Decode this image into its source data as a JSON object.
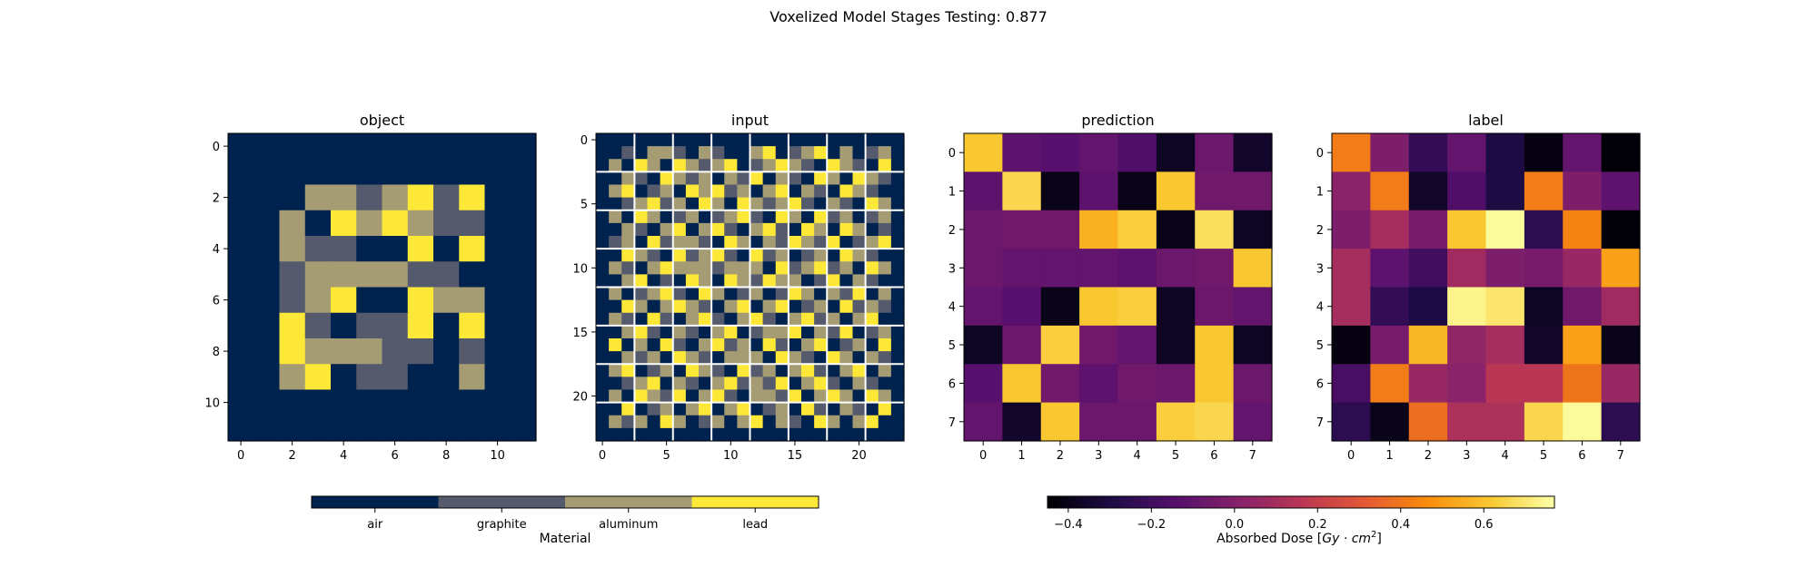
{
  "suptitle": "Voxelized Model Stages Testing: 0.877",
  "chart_data": [
    {
      "type": "heatmap",
      "title": "object",
      "xticks": [
        0,
        2,
        4,
        6,
        8,
        10
      ],
      "yticks": [
        0,
        2,
        4,
        6,
        8,
        10
      ],
      "xlim": [
        -0.5,
        11.5
      ],
      "ylim": [
        -0.5,
        11.5
      ],
      "grid": false,
      "cells": [
        [
          0,
          0,
          0,
          0,
          0,
          0,
          0,
          0,
          0,
          0,
          0,
          0
        ],
        [
          0,
          0,
          0,
          0,
          0,
          0,
          0,
          0,
          0,
          0,
          0,
          0
        ],
        [
          0,
          0,
          0,
          2,
          2,
          1,
          2,
          3,
          1,
          3,
          0,
          0
        ],
        [
          0,
          0,
          2,
          0,
          3,
          2,
          3,
          2,
          1,
          1,
          0,
          0
        ],
        [
          0,
          0,
          2,
          1,
          1,
          0,
          0,
          3,
          0,
          3,
          0,
          0
        ],
        [
          0,
          0,
          1,
          2,
          2,
          2,
          2,
          1,
          1,
          0,
          0,
          0
        ],
        [
          0,
          0,
          1,
          2,
          3,
          0,
          0,
          3,
          2,
          2,
          0,
          0
        ],
        [
          0,
          0,
          3,
          1,
          0,
          1,
          1,
          3,
          0,
          3,
          0,
          0
        ],
        [
          0,
          0,
          3,
          2,
          2,
          2,
          1,
          1,
          0,
          1,
          0,
          0
        ],
        [
          0,
          0,
          2,
          3,
          0,
          1,
          1,
          0,
          0,
          2,
          0,
          0
        ],
        [
          0,
          0,
          0,
          0,
          0,
          0,
          0,
          0,
          0,
          0,
          0,
          0
        ],
        [
          0,
          0,
          0,
          0,
          0,
          0,
          0,
          0,
          0,
          0,
          0,
          0
        ]
      ]
    },
    {
      "type": "heatmap",
      "title": "input",
      "xticks": [
        0,
        5,
        10,
        15,
        20
      ],
      "yticks": [
        0,
        5,
        10,
        15,
        20
      ],
      "xlim": [
        -0.5,
        23.5
      ],
      "ylim": [
        -0.5,
        23.5
      ],
      "grid": true,
      "grid_lines": [
        2.5,
        5.5,
        8.5,
        11.5,
        14.5,
        17.5,
        20.5
      ],
      "cells": [
        [
          0,
          0,
          0,
          0,
          0,
          0,
          0,
          0,
          0,
          0,
          0,
          0,
          0,
          0,
          0,
          0,
          0,
          0,
          0,
          0,
          0,
          0,
          0,
          0
        ],
        [
          0,
          0,
          1,
          0,
          2,
          2,
          1,
          0,
          2,
          1,
          0,
          0,
          2,
          3,
          0,
          1,
          2,
          3,
          0,
          2,
          0,
          1,
          2,
          0
        ],
        [
          0,
          2,
          0,
          3,
          2,
          0,
          3,
          2,
          1,
          2,
          3,
          0,
          1,
          2,
          3,
          2,
          1,
          0,
          3,
          2,
          1,
          0,
          3,
          0
        ],
        [
          0,
          0,
          2,
          1,
          0,
          3,
          2,
          1,
          2,
          0,
          2,
          1,
          3,
          0,
          2,
          1,
          0,
          3,
          2,
          0,
          3,
          2,
          1,
          0
        ],
        [
          0,
          2,
          3,
          0,
          1,
          2,
          0,
          3,
          2,
          3,
          1,
          2,
          0,
          2,
          3,
          0,
          2,
          1,
          0,
          3,
          2,
          1,
          0,
          0
        ],
        [
          0,
          0,
          1,
          2,
          3,
          1,
          2,
          0,
          3,
          2,
          0,
          3,
          2,
          1,
          2,
          3,
          1,
          0,
          2,
          1,
          0,
          3,
          2,
          0
        ],
        [
          0,
          2,
          0,
          3,
          2,
          0,
          1,
          2,
          0,
          1,
          2,
          3,
          1,
          0,
          3,
          2,
          0,
          3,
          1,
          2,
          0,
          1,
          2,
          0
        ],
        [
          0,
          0,
          2,
          1,
          0,
          2,
          3,
          0,
          2,
          3,
          1,
          0,
          2,
          3,
          1,
          0,
          3,
          2,
          0,
          3,
          2,
          0,
          1,
          0
        ],
        [
          0,
          1,
          2,
          0,
          3,
          1,
          2,
          2,
          1,
          0,
          3,
          2,
          0,
          2,
          1,
          3,
          2,
          1,
          3,
          0,
          1,
          2,
          3,
          0
        ],
        [
          0,
          0,
          3,
          2,
          1,
          0,
          3,
          1,
          2,
          3,
          1,
          0,
          3,
          1,
          2,
          0,
          1,
          2,
          0,
          3,
          2,
          1,
          0,
          0
        ],
        [
          0,
          2,
          1,
          0,
          2,
          3,
          2,
          2,
          2,
          1,
          2,
          2,
          2,
          0,
          3,
          1,
          2,
          3,
          1,
          2,
          0,
          3,
          2,
          0
        ],
        [
          0,
          0,
          2,
          3,
          0,
          1,
          0,
          3,
          2,
          0,
          3,
          2,
          1,
          3,
          2,
          2,
          0,
          1,
          3,
          0,
          2,
          1,
          0,
          0
        ],
        [
          0,
          2,
          0,
          1,
          2,
          3,
          1,
          0,
          3,
          2,
          0,
          1,
          2,
          0,
          1,
          3,
          2,
          0,
          2,
          1,
          3,
          0,
          2,
          0
        ],
        [
          0,
          0,
          3,
          2,
          0,
          2,
          3,
          2,
          1,
          0,
          2,
          3,
          0,
          2,
          3,
          0,
          1,
          2,
          0,
          3,
          1,
          2,
          1,
          0
        ],
        [
          0,
          2,
          1,
          0,
          3,
          1,
          0,
          2,
          3,
          1,
          0,
          2,
          3,
          1,
          0,
          2,
          3,
          1,
          2,
          0,
          2,
          3,
          0,
          0
        ],
        [
          0,
          0,
          2,
          3,
          1,
          0,
          2,
          1,
          0,
          2,
          3,
          0,
          1,
          2,
          2,
          3,
          0,
          2,
          1,
          3,
          0,
          1,
          2,
          0
        ],
        [
          0,
          3,
          0,
          2,
          0,
          3,
          1,
          0,
          2,
          3,
          1,
          2,
          0,
          3,
          1,
          0,
          2,
          3,
          0,
          1,
          2,
          0,
          3,
          0
        ],
        [
          0,
          0,
          2,
          1,
          2,
          0,
          3,
          2,
          1,
          0,
          2,
          2,
          2,
          0,
          3,
          2,
          1,
          0,
          3,
          2,
          0,
          2,
          1,
          0
        ],
        [
          0,
          2,
          3,
          0,
          1,
          2,
          0,
          3,
          2,
          1,
          0,
          3,
          1,
          2,
          0,
          2,
          3,
          1,
          0,
          2,
          3,
          0,
          2,
          0
        ],
        [
          0,
          0,
          1,
          2,
          3,
          0,
          2,
          1,
          0,
          2,
          3,
          1,
          2,
          1,
          3,
          0,
          2,
          3,
          1,
          0,
          2,
          1,
          0,
          0
        ],
        [
          0,
          2,
          0,
          3,
          2,
          1,
          3,
          0,
          2,
          3,
          1,
          0,
          2,
          2,
          1,
          3,
          0,
          2,
          3,
          2,
          0,
          3,
          2,
          0
        ],
        [
          0,
          0,
          3,
          0,
          1,
          2,
          0,
          2,
          3,
          0,
          2,
          3,
          0,
          1,
          2,
          0,
          3,
          1,
          0,
          2,
          1,
          0,
          3,
          0
        ],
        [
          0,
          2,
          1,
          2,
          0,
          3,
          2,
          0,
          1,
          2,
          0,
          2,
          3,
          0,
          2,
          1,
          0,
          3,
          2,
          0,
          2,
          3,
          0,
          0
        ],
        [
          0,
          0,
          0,
          0,
          0,
          0,
          0,
          0,
          0,
          0,
          0,
          0,
          0,
          0,
          0,
          0,
          0,
          0,
          0,
          0,
          0,
          0,
          0,
          0
        ]
      ]
    },
    {
      "type": "heatmap",
      "title": "prediction",
      "xticks": [
        0,
        1,
        2,
        3,
        4,
        5,
        6,
        7
      ],
      "yticks": [
        0,
        1,
        2,
        3,
        4,
        5,
        6,
        7
      ],
      "xlim": [
        -0.5,
        7.5
      ],
      "ylim": [
        -0.5,
        7.5
      ],
      "grid": false,
      "values": [
        [
          0.62,
          -0.12,
          -0.14,
          -0.1,
          -0.16,
          -0.38,
          -0.08,
          -0.36
        ],
        [
          -0.12,
          0.66,
          -0.4,
          -0.12,
          -0.4,
          0.62,
          -0.06,
          -0.06
        ],
        [
          -0.08,
          -0.06,
          -0.06,
          0.56,
          0.64,
          -0.4,
          0.68,
          -0.38
        ],
        [
          -0.08,
          -0.1,
          -0.1,
          -0.1,
          -0.12,
          -0.08,
          -0.06,
          0.62
        ],
        [
          -0.1,
          -0.14,
          -0.4,
          0.62,
          0.64,
          -0.38,
          -0.08,
          -0.1
        ],
        [
          -0.38,
          -0.08,
          0.64,
          -0.06,
          -0.1,
          -0.38,
          0.62,
          -0.38
        ],
        [
          -0.14,
          0.62,
          -0.06,
          -0.12,
          -0.06,
          -0.08,
          0.62,
          -0.08
        ],
        [
          -0.1,
          -0.36,
          0.62,
          -0.08,
          -0.08,
          0.64,
          0.66,
          -0.1
        ]
      ]
    },
    {
      "type": "heatmap",
      "title": "label",
      "xticks": [
        0,
        1,
        2,
        3,
        4,
        5,
        6,
        7
      ],
      "yticks": [
        0,
        1,
        2,
        3,
        4,
        5,
        6,
        7
      ],
      "xlim": [
        -0.5,
        7.5
      ],
      "ylim": [
        -0.5,
        7.5
      ],
      "grid": false,
      "values": [
        [
          0.42,
          -0.02,
          -0.24,
          -0.1,
          -0.3,
          -0.42,
          -0.1,
          -0.44
        ],
        [
          0.02,
          0.42,
          -0.36,
          -0.16,
          -0.3,
          0.42,
          -0.02,
          -0.12
        ],
        [
          -0.02,
          0.1,
          -0.04,
          0.62,
          0.76,
          -0.26,
          0.44,
          -0.44
        ],
        [
          0.1,
          -0.12,
          -0.2,
          0.08,
          -0.02,
          -0.04,
          0.06,
          0.52
        ],
        [
          0.1,
          -0.24,
          -0.3,
          0.74,
          0.7,
          -0.38,
          -0.06,
          0.08
        ],
        [
          -0.42,
          -0.04,
          0.58,
          0.04,
          0.1,
          -0.36,
          0.52,
          -0.4
        ],
        [
          -0.18,
          0.42,
          0.06,
          0.02,
          0.16,
          0.16,
          0.4,
          0.06
        ],
        [
          -0.26,
          -0.4,
          0.38,
          0.12,
          0.12,
          0.66,
          0.76,
          -0.26
        ]
      ]
    }
  ],
  "material_colorbar": {
    "label": "Material",
    "categories": [
      "air",
      "graphite",
      "aluminum",
      "lead"
    ],
    "colors": [
      "#00224e",
      "#555b6c",
      "#a59c74",
      "#fde737"
    ]
  },
  "dose_colorbar": {
    "label_prefix": "Absorbed Dose [",
    "label_math": "Gy · cm",
    "label_sup": "2",
    "label_suffix": "]",
    "colormap": "inferno",
    "vmin": -0.45,
    "vmax": 0.77,
    "ticks": [
      -0.4,
      -0.2,
      0.0,
      0.2,
      0.4,
      0.6
    ],
    "tick_labels": [
      "−0.4",
      "−0.2",
      "0.0",
      "0.2",
      "0.4",
      "0.6"
    ]
  }
}
